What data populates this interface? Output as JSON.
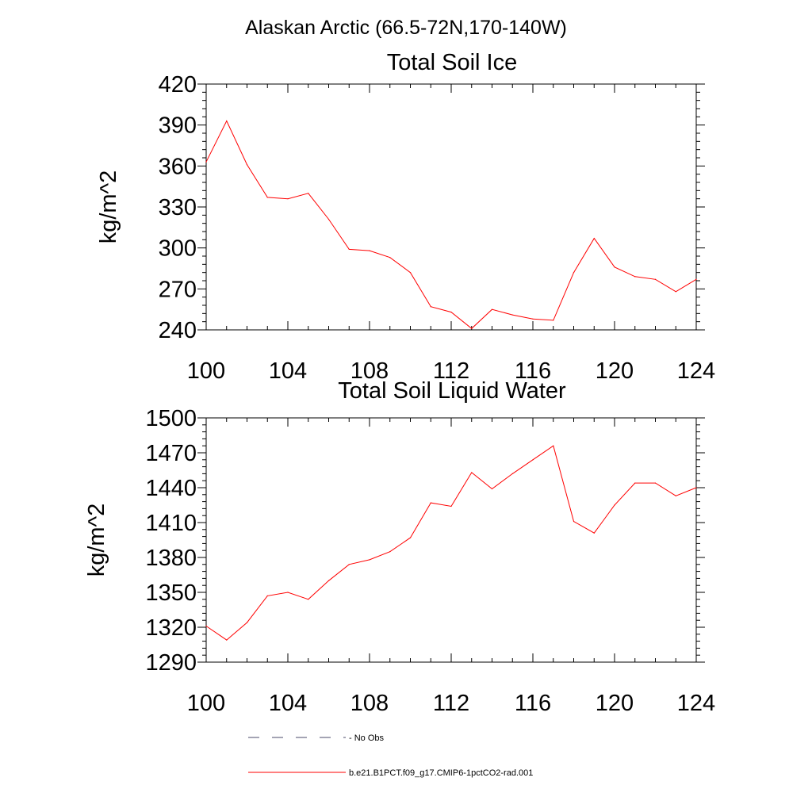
{
  "figure": {
    "title": "Alaskan Arctic (66.5-72N,170-140W)"
  },
  "chart_data": [
    {
      "type": "line",
      "title": "Total Soil Ice",
      "xlabel": "",
      "ylabel": "kg/m^2",
      "xlim": [
        100,
        124
      ],
      "ylim": [
        240,
        420
      ],
      "x_ticks": [
        100,
        104,
        108,
        112,
        116,
        120,
        124
      ],
      "y_ticks": [
        240,
        270,
        300,
        330,
        360,
        390,
        420
      ],
      "grid": false,
      "series": [
        {
          "name": "b.e21.B1PCT.f09_g17.CMIP6-1pctCO2-rad.001",
          "color": "#ff0000",
          "x": [
            100,
            101,
            102,
            103,
            104,
            105,
            106,
            107,
            108,
            109,
            110,
            111,
            112,
            113,
            114,
            115,
            116,
            117,
            118,
            119,
            120,
            121,
            122,
            123,
            124
          ],
          "values": [
            363,
            393,
            361,
            337,
            336,
            340,
            321,
            299,
            298,
            293,
            282,
            257,
            253,
            241,
            255,
            251,
            248,
            247,
            282,
            307,
            286,
            279,
            277,
            268,
            277
          ]
        }
      ]
    },
    {
      "type": "line",
      "title": "Total Soil Liquid Water",
      "xlabel": "",
      "ylabel": "kg/m^2",
      "xlim": [
        100,
        124
      ],
      "ylim": [
        1290,
        1500
      ],
      "x_ticks": [
        100,
        104,
        108,
        112,
        116,
        120,
        124
      ],
      "y_ticks": [
        1290,
        1320,
        1350,
        1380,
        1410,
        1440,
        1470,
        1500
      ],
      "grid": false,
      "series": [
        {
          "name": "b.e21.B1PCT.f09_g17.CMIP6-1pctCO2-rad.001",
          "color": "#ff0000",
          "x": [
            100,
            101,
            102,
            103,
            104,
            105,
            106,
            107,
            108,
            109,
            110,
            111,
            112,
            113,
            114,
            115,
            116,
            117,
            118,
            119,
            120,
            121,
            122,
            123,
            124
          ],
          "values": [
            1321,
            1309,
            1324,
            1347,
            1350,
            1344,
            1360,
            1374,
            1378,
            1385,
            1397,
            1427,
            1424,
            1453,
            1439,
            1452,
            1464,
            1476,
            1411,
            1401,
            1425,
            1444,
            1444,
            1433,
            1440
          ]
        }
      ]
    }
  ],
  "legend": {
    "placement": "bottom",
    "entries": [
      {
        "label": "No Obs",
        "style": "dashed",
        "color": "#4a4a6a"
      },
      {
        "label": "b.e21.B1PCT.f09_g17.CMIP6-1pctCO2-rad.001",
        "style": "solid",
        "color": "#ff0000"
      }
    ]
  }
}
